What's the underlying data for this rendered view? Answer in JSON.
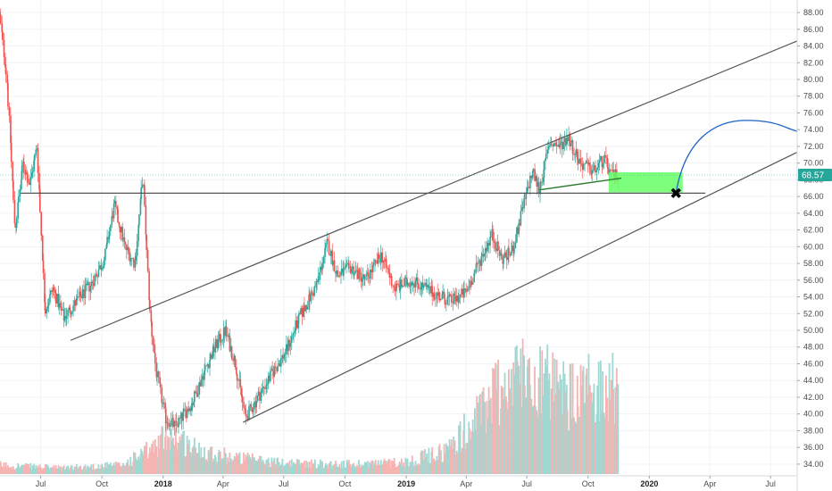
{
  "chart_data": {
    "type": "candlestick",
    "title": "",
    "y_axis": {
      "position": "right",
      "ticks": [
        34.0,
        36.0,
        38.0,
        40.0,
        42.0,
        44.0,
        46.0,
        48.0,
        50.0,
        52.0,
        54.0,
        56.0,
        58.0,
        60.0,
        62.0,
        64.0,
        66.0,
        68.0,
        70.0,
        72.0,
        74.0,
        76.0,
        78.0,
        80.0,
        82.0,
        84.0,
        86.0,
        88.0
      ],
      "tick_labels": [
        "34.00",
        "36.00",
        "38.00",
        "40.00",
        "42.00",
        "44.00",
        "46.00",
        "48.00",
        "50.00",
        "52.00",
        "54.00",
        "56.00",
        "58.00",
        "60.00",
        "62.00",
        "64.00",
        "66.00",
        "68.00",
        "70.00",
        "72.00",
        "74.00",
        "76.00",
        "78.00",
        "80.00",
        "82.00",
        "84.00",
        "86.00",
        "88.00"
      ],
      "range": [
        32.6,
        89.5
      ]
    },
    "x_axis": {
      "range": [
        "2017-05-01",
        "2020-08-10"
      ],
      "ticks": [
        {
          "date": "2017-07-01",
          "label": "Jul",
          "bold": false
        },
        {
          "date": "2017-10-01",
          "label": "Oct",
          "bold": false
        },
        {
          "date": "2018-01-01",
          "label": "2018",
          "bold": true
        },
        {
          "date": "2018-04-01",
          "label": "Apr",
          "bold": false
        },
        {
          "date": "2018-07-01",
          "label": "Jul",
          "bold": false
        },
        {
          "date": "2018-10-01",
          "label": "Oct",
          "bold": false
        },
        {
          "date": "2019-01-01",
          "label": "2019",
          "bold": true
        },
        {
          "date": "2019-04-01",
          "label": "Apr",
          "bold": false
        },
        {
          "date": "2019-07-01",
          "label": "Jul",
          "bold": false
        },
        {
          "date": "2019-10-01",
          "label": "Oct",
          "bold": false
        },
        {
          "date": "2020-01-01",
          "label": "2020",
          "bold": true
        },
        {
          "date": "2020-04-01",
          "label": "Apr",
          "bold": false
        },
        {
          "date": "2020-07-01",
          "label": "Jul",
          "bold": false
        }
      ]
    },
    "current_price": {
      "value": 68.57,
      "label": "68.57",
      "color": "#26a69a"
    },
    "price_path": [
      [
        "2017-05-01",
        87.5
      ],
      [
        "2017-05-12",
        80.0
      ],
      [
        "2017-05-24",
        62.0
      ],
      [
        "2017-06-05",
        70.0
      ],
      [
        "2017-06-15",
        67.5
      ],
      [
        "2017-06-26",
        72.0
      ],
      [
        "2017-07-08",
        52.5
      ],
      [
        "2017-07-20",
        55.0
      ],
      [
        "2017-08-05",
        51.5
      ],
      [
        "2017-08-25",
        53.5
      ],
      [
        "2017-09-15",
        55.5
      ],
      [
        "2017-10-05",
        58.5
      ],
      [
        "2017-10-20",
        65.0
      ],
      [
        "2017-11-05",
        60.0
      ],
      [
        "2017-11-20",
        58.0
      ],
      [
        "2017-12-02",
        68.5
      ],
      [
        "2017-12-12",
        52.5
      ],
      [
        "2017-12-22",
        45.0
      ],
      [
        "2018-01-05",
        39.5
      ],
      [
        "2018-01-20",
        38.5
      ],
      [
        "2018-02-15",
        41.5
      ],
      [
        "2018-03-01",
        44.5
      ],
      [
        "2018-03-20",
        48.0
      ],
      [
        "2018-04-05",
        50.0
      ],
      [
        "2018-04-20",
        46.0
      ],
      [
        "2018-05-05",
        39.5
      ],
      [
        "2018-05-20",
        41.5
      ],
      [
        "2018-06-15",
        45.0
      ],
      [
        "2018-07-05",
        47.5
      ],
      [
        "2018-07-25",
        51.5
      ],
      [
        "2018-08-20",
        55.5
      ],
      [
        "2018-09-05",
        60.5
      ],
      [
        "2018-09-20",
        56.5
      ],
      [
        "2018-10-10",
        57.5
      ],
      [
        "2018-11-01",
        56.0
      ],
      [
        "2018-11-25",
        59.0
      ],
      [
        "2018-12-15",
        55.0
      ],
      [
        "2019-01-10",
        56.0
      ],
      [
        "2019-02-10",
        54.5
      ],
      [
        "2019-03-10",
        53.5
      ],
      [
        "2019-04-01",
        54.5
      ],
      [
        "2019-04-20",
        58.0
      ],
      [
        "2019-05-10",
        61.5
      ],
      [
        "2019-05-25",
        58.5
      ],
      [
        "2019-06-10",
        59.5
      ],
      [
        "2019-06-25",
        64.5
      ],
      [
        "2019-07-10",
        69.0
      ],
      [
        "2019-07-20",
        66.8
      ],
      [
        "2019-08-05",
        72.5
      ],
      [
        "2019-08-20",
        72.0
      ],
      [
        "2019-09-01",
        73.2
      ],
      [
        "2019-09-20",
        70.0
      ],
      [
        "2019-10-10",
        69.0
      ],
      [
        "2019-10-25",
        70.5
      ],
      [
        "2019-11-05",
        68.5
      ],
      [
        "2019-11-15",
        68.57
      ]
    ],
    "volume_path": [
      [
        "2017-05-01",
        1.2
      ],
      [
        "2017-08-01",
        0.8
      ],
      [
        "2017-11-01",
        1.2
      ],
      [
        "2017-12-20",
        3.5
      ],
      [
        "2018-01-10",
        5.5
      ],
      [
        "2018-02-15",
        3.5
      ],
      [
        "2018-04-15",
        2.2
      ],
      [
        "2018-07-01",
        1.5
      ],
      [
        "2018-10-01",
        1.3
      ],
      [
        "2019-01-01",
        1.6
      ],
      [
        "2019-03-01",
        3.0
      ],
      [
        "2019-04-15",
        7.0
      ],
      [
        "2019-05-15",
        11.0
      ],
      [
        "2019-06-10",
        12.5
      ],
      [
        "2019-07-10",
        14.0
      ],
      [
        "2019-08-10",
        11.0
      ],
      [
        "2019-09-15",
        10.0
      ],
      [
        "2019-10-15",
        12.0
      ],
      [
        "2019-11-15",
        11.0
      ]
    ],
    "volume_max_display": 16,
    "annotations": {
      "upper_channel": {
        "from": [
          "2017-08-15",
          48.8
        ],
        "to": [
          "2020-08-10",
          84.6
        ],
        "color": "#555555"
      },
      "lower_channel": {
        "from": [
          "2018-05-01",
          39.0
        ],
        "to": [
          "2020-08-10",
          71.3
        ],
        "color": "#555555"
      },
      "horizontal_support": {
        "from": [
          "2017-06-01",
          66.4
        ],
        "to": [
          "2020-03-25",
          66.4
        ],
        "color": "#555555"
      },
      "short_trendline": {
        "from": [
          "2019-07-20",
          66.8
        ],
        "to": [
          "2019-11-20",
          68.2
        ],
        "color": "#2e7d32"
      },
      "zone": {
        "from": [
          "2019-11-01",
          66.5
        ],
        "to": [
          "2020-02-20",
          68.9
        ],
        "color": "#66ff66"
      },
      "marker_x": {
        "at": [
          "2020-02-10",
          66.4
        ],
        "symbol": "✖"
      },
      "projection": {
        "from": [
          "2020-02-10",
          66.4
        ],
        "peak": [
          "2020-05-25",
          75.1
        ],
        "to": [
          "2020-08-10",
          73.8
        ],
        "color": "#1e63c8"
      }
    }
  }
}
